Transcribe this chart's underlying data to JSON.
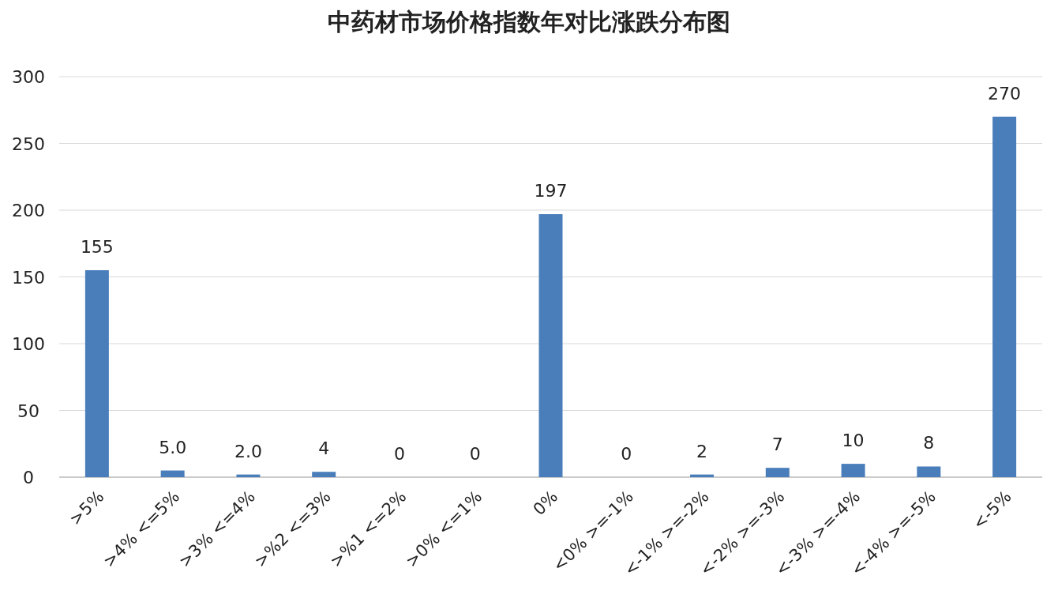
{
  "chart_data": {
    "type": "bar",
    "title": "中药材市场价格指数年对比涨跌分布图",
    "categories": [
      ">5%",
      ">4% <=5%",
      ">3% <=4%",
      ">%2 <=3%",
      ">%1 <=2%",
      ">0% <=1%",
      "0%",
      "<0% >=-1%",
      "<-1% >=-2%",
      "<-2% >=-3%",
      "<-3% >=-4%",
      "<-4% >=-5%",
      "<-5%"
    ],
    "values": [
      155,
      5.0,
      2.0,
      4,
      0,
      0,
      197,
      0,
      2,
      7,
      10,
      8,
      270
    ],
    "value_labels": [
      "155",
      "5.0",
      "2.0",
      "4",
      "0",
      "0",
      "197",
      "0",
      "2",
      "7",
      "10",
      "8",
      "270"
    ],
    "color": "#4a7ebb",
    "ylim": [
      0,
      300
    ],
    "yticks": [
      0,
      50,
      100,
      150,
      200,
      250,
      300
    ],
    "grid": "y"
  }
}
